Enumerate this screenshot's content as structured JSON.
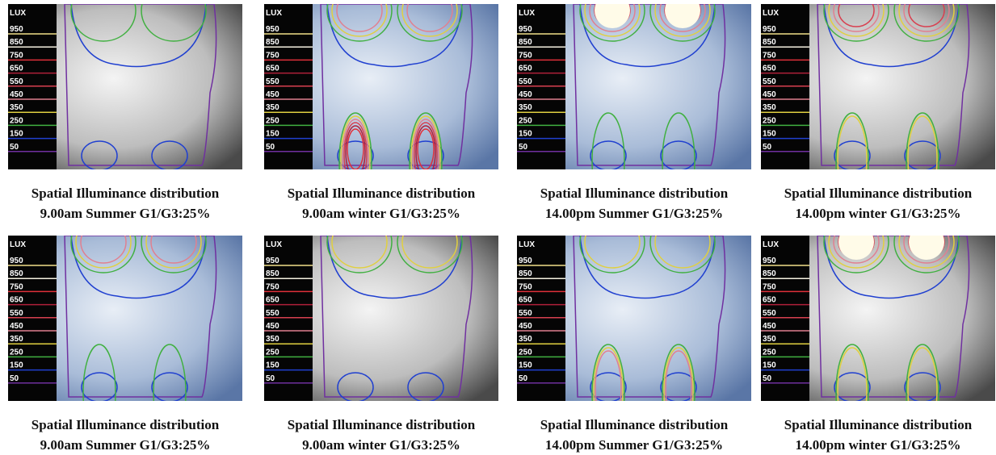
{
  "legend": {
    "title": "LUX",
    "levels": [
      {
        "label": "950",
        "color": "#f2e08a"
      },
      {
        "label": "850",
        "color": "#f4f0e0"
      },
      {
        "label": "750",
        "color": "#e0303a"
      },
      {
        "label": "650",
        "color": "#b0203a"
      },
      {
        "label": "550",
        "color": "#d84050"
      },
      {
        "label": "450",
        "color": "#e08090"
      },
      {
        "label": "350",
        "color": "#e0d040"
      },
      {
        "label": "250",
        "color": "#40b040"
      },
      {
        "label": "150",
        "color": "#2040d0"
      },
      {
        "label": "50",
        "color": "#7030a0"
      }
    ]
  },
  "panels": [
    {
      "caption": [
        "Spatial Illuminance distribution",
        "9.00am Summer G1/G3:25%"
      ]
    },
    {
      "caption": [
        "Spatial Illuminance distribution",
        "9.00am winter G1/G3:25%"
      ]
    },
    {
      "caption": [
        "Spatial Illuminance distribution",
        "14.00pm Summer G1/G3:25%"
      ]
    },
    {
      "caption": [
        "Spatial Illuminance distribution",
        "14.00pm winter G1/G3:25%"
      ]
    },
    {
      "caption": [
        "Spatial Illuminance distribution",
        "9.00am Summer G1/G3:25%"
      ]
    },
    {
      "caption": [
        "Spatial Illuminance distribution",
        "9.00am winter G1/G3:25%"
      ]
    },
    {
      "caption": [
        "Spatial Illuminance distribution",
        "14.00pm Summer G1/G3:25%"
      ]
    },
    {
      "caption": [
        "Spatial Illuminance distribution",
        "14.00pm winter G1/G3:25%"
      ]
    }
  ]
}
